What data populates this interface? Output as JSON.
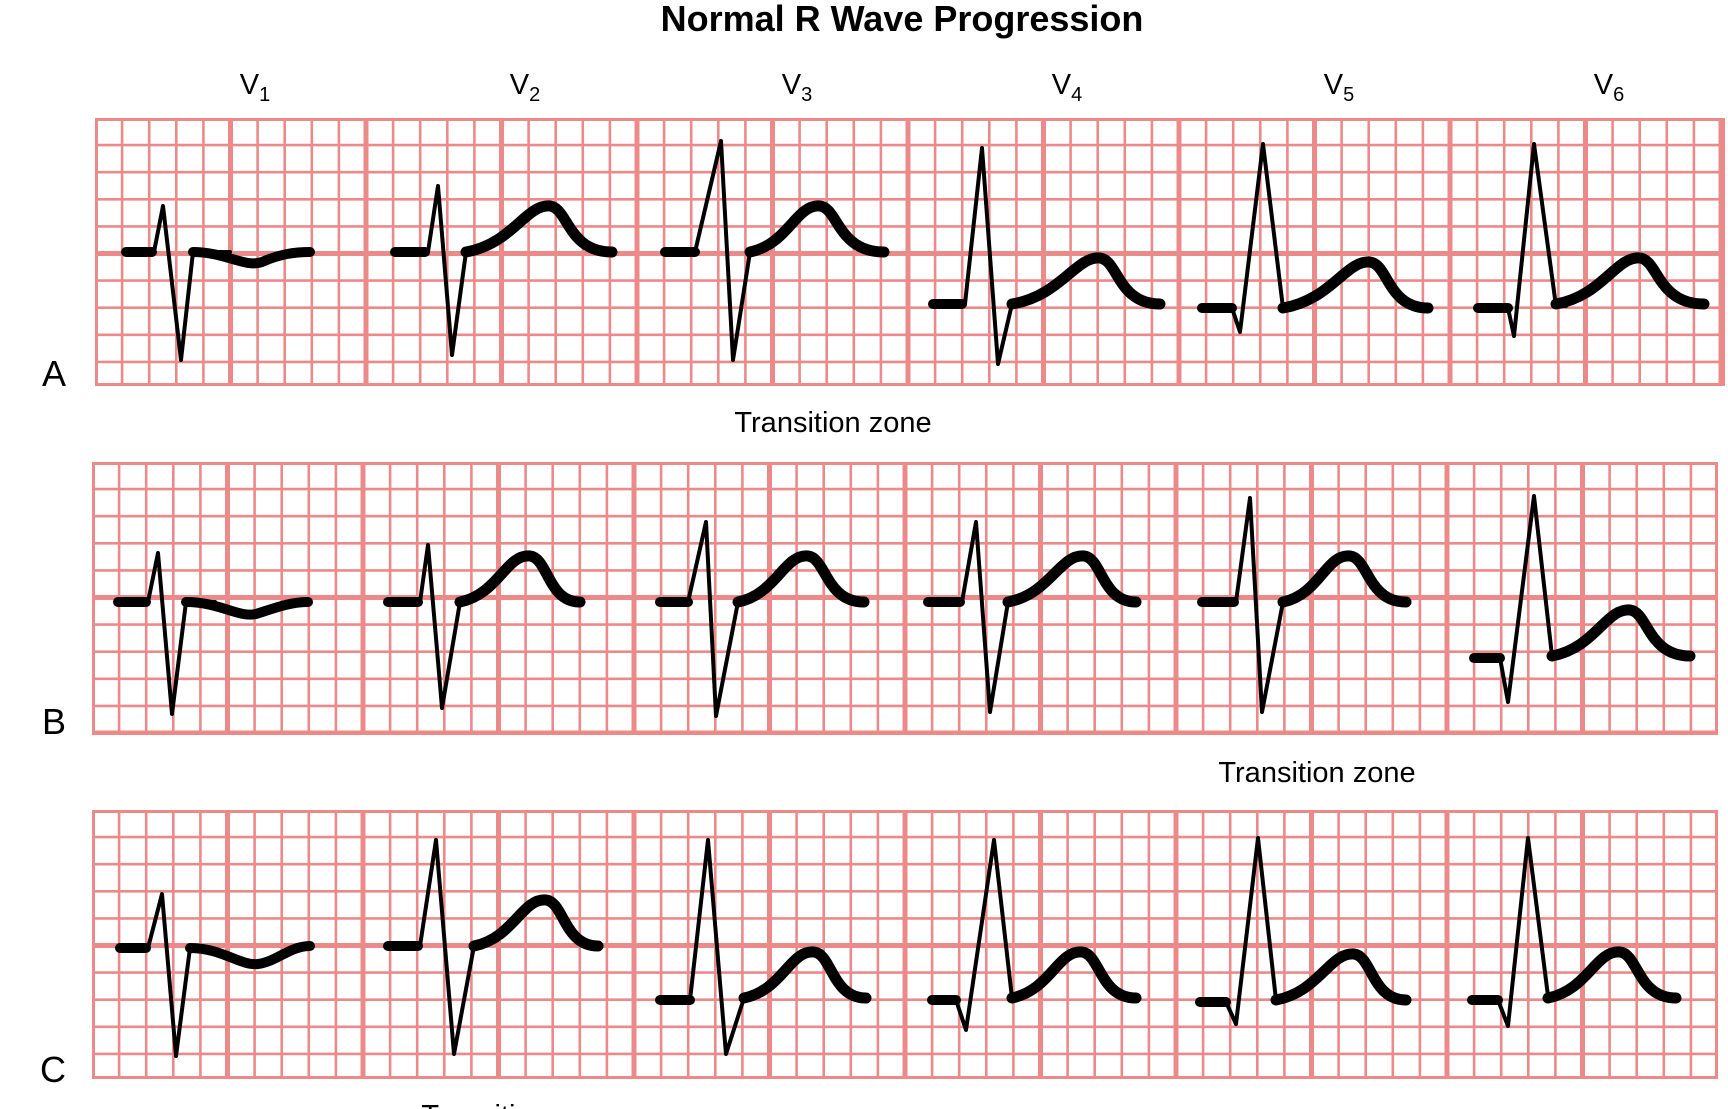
{
  "title": "Normal R Wave Progression",
  "leads": [
    {
      "prefix": "V",
      "sub": "1"
    },
    {
      "prefix": "V",
      "sub": "2"
    },
    {
      "prefix": "V",
      "sub": "3"
    },
    {
      "prefix": "V",
      "sub": "4"
    },
    {
      "prefix": "V",
      "sub": "5"
    },
    {
      "prefix": "V",
      "sub": "6"
    }
  ],
  "panels": [
    {
      "label": "A",
      "transition_text": "Transition zone"
    },
    {
      "label": "B",
      "transition_text": "Transition zone"
    },
    {
      "label": "C",
      "transition_text": "Transition zone"
    }
  ],
  "colors": {
    "grid": "#ec8a8a",
    "trace": "#000000",
    "background": "#ffffff"
  }
}
